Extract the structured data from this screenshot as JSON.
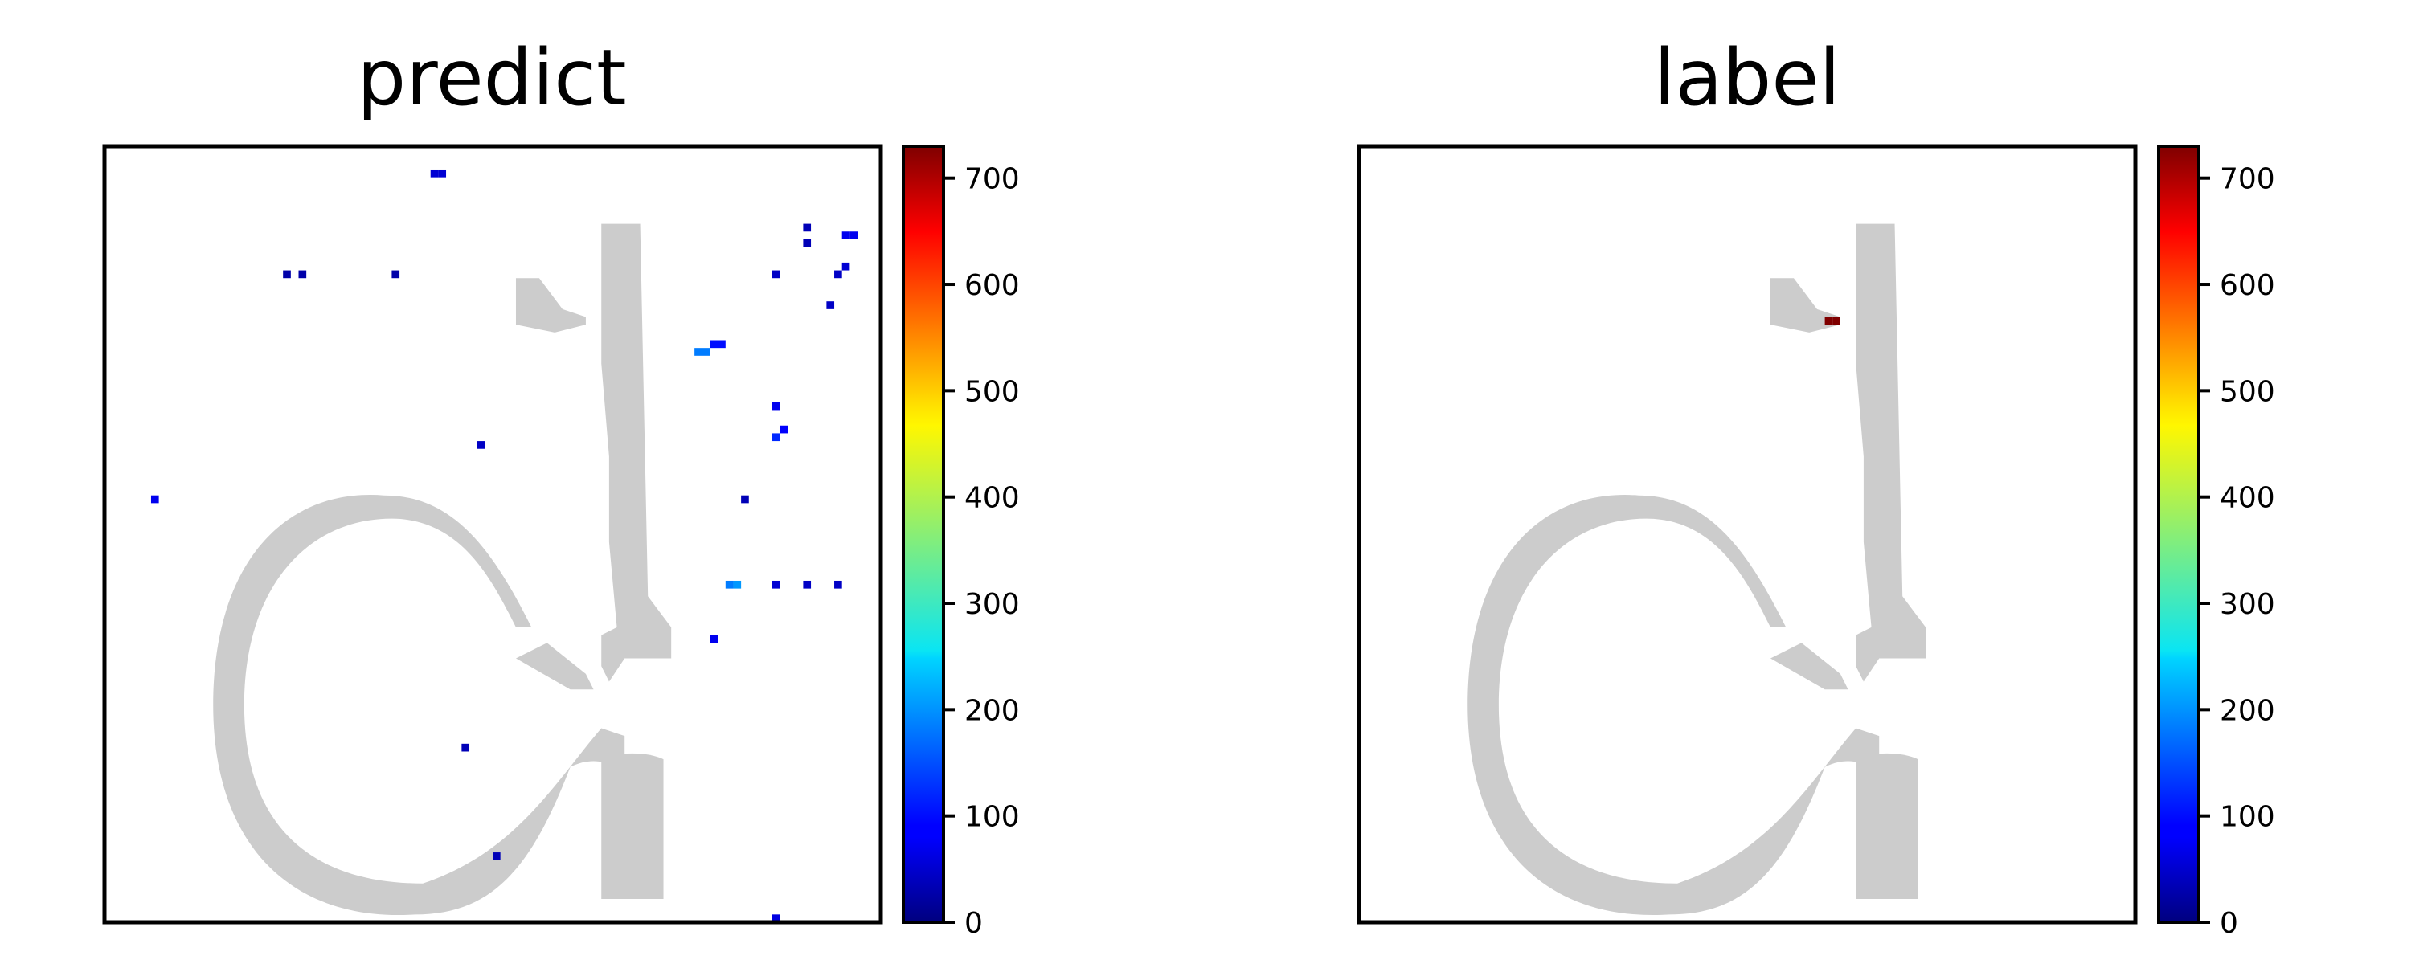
{
  "chart_data": [
    {
      "type": "heatmap",
      "title": "predict",
      "grid": false,
      "colormap": "jet",
      "background_shape_color": "#cccccc",
      "colorbar": {
        "vmin": 0,
        "vmax": 730,
        "ticks": [
          0,
          100,
          200,
          300,
          400,
          500,
          600,
          700
        ]
      },
      "points": [
        {
          "col": 42,
          "row": 3,
          "value": 60
        },
        {
          "col": 43,
          "row": 3,
          "value": 60
        },
        {
          "col": 90,
          "row": 10,
          "value": 40
        },
        {
          "col": 90,
          "row": 12,
          "value": 40
        },
        {
          "col": 95,
          "row": 11,
          "value": 80
        },
        {
          "col": 96,
          "row": 11,
          "value": 80
        },
        {
          "col": 23,
          "row": 16,
          "value": 30
        },
        {
          "col": 25,
          "row": 16,
          "value": 30
        },
        {
          "col": 37,
          "row": 16,
          "value": 30
        },
        {
          "col": 86,
          "row": 16,
          "value": 50
        },
        {
          "col": 94,
          "row": 16,
          "value": 50
        },
        {
          "col": 95,
          "row": 15,
          "value": 60
        },
        {
          "col": 93,
          "row": 20,
          "value": 50
        },
        {
          "col": 78,
          "row": 25,
          "value": 100
        },
        {
          "col": 79,
          "row": 25,
          "value": 100
        },
        {
          "col": 77,
          "row": 26,
          "value": 180
        },
        {
          "col": 76,
          "row": 26,
          "value": 180
        },
        {
          "col": 86,
          "row": 33,
          "value": 80
        },
        {
          "col": 87,
          "row": 36,
          "value": 90
        },
        {
          "col": 86,
          "row": 37,
          "value": 120
        },
        {
          "col": 48,
          "row": 38,
          "value": 50
        },
        {
          "col": 82,
          "row": 45,
          "value": 40
        },
        {
          "col": 6,
          "row": 45,
          "value": 80
        },
        {
          "col": 81,
          "row": 56,
          "value": 200
        },
        {
          "col": 80,
          "row": 56,
          "value": 180
        },
        {
          "col": 86,
          "row": 56,
          "value": 60
        },
        {
          "col": 90,
          "row": 56,
          "value": 50
        },
        {
          "col": 94,
          "row": 56,
          "value": 50
        },
        {
          "col": 78,
          "row": 63,
          "value": 80
        },
        {
          "col": 46,
          "row": 77,
          "value": 40
        },
        {
          "col": 50,
          "row": 91,
          "value": 40
        },
        {
          "col": 86,
          "row": 99,
          "value": 70
        }
      ]
    },
    {
      "type": "heatmap",
      "title": "label",
      "grid": false,
      "colormap": "jet",
      "background_shape_color": "#cccccc",
      "colorbar": {
        "vmin": 0,
        "vmax": 730,
        "ticks": [
          0,
          100,
          200,
          300,
          400,
          500,
          600,
          700
        ]
      },
      "points": [
        {
          "col": 60,
          "row": 22,
          "value": 730
        },
        {
          "col": 61,
          "row": 22,
          "value": 730
        }
      ]
    }
  ]
}
